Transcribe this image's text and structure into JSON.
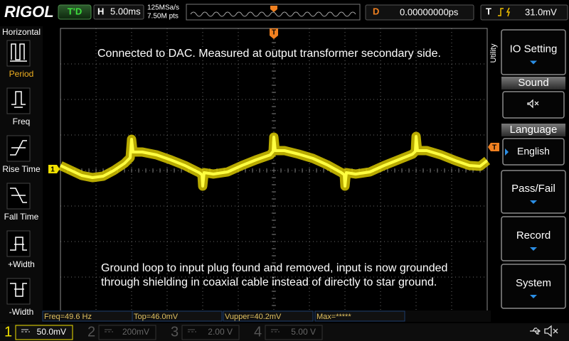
{
  "header": {
    "logo": "RIGOL",
    "run_state": "T'D",
    "timebase_label": "H",
    "timebase": "5.00ms",
    "sample_rate": "125MSa/s",
    "memory_depth": "7.50M pts",
    "delay_label": "D",
    "delay": "0.00000000ps",
    "trigger_label": "T",
    "trigger_level": "31.0mV"
  },
  "left_menu": {
    "title": "Horizontal",
    "items": [
      "Period",
      "Freq",
      "Rise Time",
      "Fall Time",
      "+Width",
      "-Width"
    ]
  },
  "right_menu": {
    "title": "Utility",
    "items": [
      {
        "label": "IO Setting"
      },
      {
        "label": "Sound"
      },
      {
        "label": "Language",
        "value": "English"
      },
      {
        "label": "Pass/Fail"
      },
      {
        "label": "Record"
      },
      {
        "label": "System"
      }
    ]
  },
  "screen": {
    "annotations": [
      "Connected to DAC. Measured at output transformer secondary side.",
      "Ground loop to input plug found and removed, input is now grounded",
      "through shielding in coaxial cable instead of directly to star ground."
    ],
    "channel_marker": "1",
    "trigger_marker": "T",
    "position_marker": "T"
  },
  "measurements": [
    "Freq=49.6 Hz",
    "Top=46.0mV",
    "Vupper=40.2mV",
    "Max=*****"
  ],
  "channels": [
    {
      "number": "1",
      "scale": "50.0mV"
    },
    {
      "number": "2",
      "scale": "200mV"
    },
    {
      "number": "3",
      "scale": "2.00 V"
    },
    {
      "number": "4",
      "scale": "5.00 V"
    }
  ]
}
